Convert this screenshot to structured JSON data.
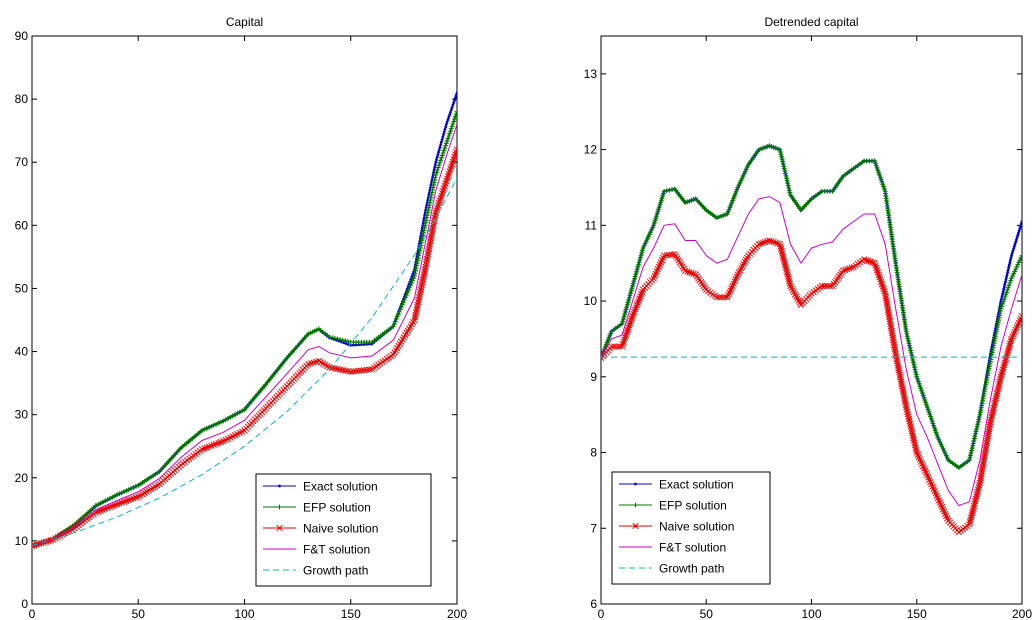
{
  "chart_data": [
    {
      "type": "line",
      "title": "Capital",
      "xlabel": "",
      "ylabel": "",
      "xlim": [
        0,
        200
      ],
      "ylim": [
        0,
        90
      ],
      "xticks": [
        0,
        50,
        100,
        150,
        200
      ],
      "yticks": [
        0,
        10,
        20,
        30,
        40,
        50,
        60,
        70,
        80,
        90
      ],
      "grid": false,
      "legend_position": "bottom-right",
      "series": [
        {
          "name": "Exact solution",
          "color": "#0000cc",
          "marker": "dot",
          "x": [
            0,
            10,
            20,
            30,
            40,
            50,
            60,
            70,
            80,
            90,
            100,
            110,
            120,
            130,
            135,
            140,
            150,
            160,
            170,
            180,
            185,
            190,
            195,
            200
          ],
          "y": [
            9.3,
            10.3,
            12.5,
            15.5,
            17.3,
            18.8,
            21.0,
            24.7,
            27.5,
            29.0,
            30.8,
            34.8,
            39.0,
            42.8,
            43.5,
            42.2,
            41.0,
            41.2,
            44.0,
            53.0,
            62.0,
            70.0,
            76.0,
            81.0
          ]
        },
        {
          "name": "EFP solution",
          "color": "#007700",
          "marker": "plus",
          "x": [
            0,
            10,
            20,
            30,
            40,
            50,
            60,
            70,
            80,
            90,
            100,
            110,
            120,
            130,
            135,
            140,
            150,
            160,
            170,
            180,
            185,
            190,
            195,
            200
          ],
          "y": [
            9.2,
            10.3,
            12.6,
            15.6,
            17.3,
            18.8,
            21.0,
            24.7,
            27.5,
            29.0,
            30.8,
            34.8,
            39.0,
            42.8,
            43.6,
            42.3,
            41.5,
            41.5,
            44.0,
            52.0,
            60.0,
            68.0,
            73.0,
            78.0
          ]
        },
        {
          "name": "Naive solution",
          "color": "#ee0000",
          "marker": "x",
          "x": [
            0,
            10,
            20,
            30,
            40,
            50,
            60,
            70,
            80,
            90,
            100,
            110,
            120,
            130,
            135,
            140,
            150,
            160,
            170,
            180,
            185,
            190,
            195,
            200
          ],
          "y": [
            9.2,
            10.2,
            12.0,
            14.5,
            15.8,
            17.0,
            19.0,
            22.0,
            24.5,
            25.8,
            27.5,
            31.0,
            34.5,
            38.0,
            38.5,
            37.5,
            36.8,
            37.2,
            39.5,
            45.0,
            53.0,
            62.0,
            67.0,
            72.0
          ]
        },
        {
          "name": "F&T solution",
          "color": "#cc00cc",
          "marker": "none",
          "x": [
            0,
            10,
            20,
            30,
            40,
            50,
            60,
            70,
            80,
            90,
            100,
            110,
            120,
            130,
            135,
            140,
            150,
            160,
            170,
            180,
            185,
            190,
            195,
            200
          ],
          "y": [
            9.2,
            10.2,
            12.2,
            14.9,
            16.4,
            17.8,
            19.9,
            23.2,
            25.9,
            27.2,
            29.1,
            32.8,
            36.5,
            40.3,
            40.8,
            39.8,
            39.0,
            39.3,
            41.8,
            48.5,
            57.0,
            65.5,
            71.0,
            76.0
          ]
        },
        {
          "name": "Growth path",
          "color": "#00bbbb",
          "marker": "none",
          "dashed": true,
          "x": [
            0,
            20,
            40,
            60,
            80,
            100,
            120,
            140,
            160,
            180,
            190,
            200
          ],
          "y": [
            9.26,
            11.29,
            13.8,
            16.8,
            20.5,
            25.0,
            30.5,
            37.2,
            45.4,
            55.3,
            61.1,
            67.5
          ]
        }
      ]
    },
    {
      "type": "line",
      "title": "Detrended capital",
      "xlabel": "",
      "ylabel": "",
      "xlim": [
        0,
        200
      ],
      "ylim": [
        6,
        13.5
      ],
      "xticks": [
        0,
        50,
        100,
        150,
        200
      ],
      "yticks": [
        6,
        7,
        8,
        9,
        10,
        11,
        12,
        13
      ],
      "grid": false,
      "legend_position": "bottom-left",
      "series": [
        {
          "name": "Exact solution",
          "color": "#0000cc",
          "marker": "dot",
          "x": [
            0,
            5,
            10,
            15,
            20,
            25,
            30,
            35,
            40,
            45,
            50,
            55,
            60,
            65,
            70,
            75,
            80,
            85,
            90,
            95,
            100,
            105,
            110,
            115,
            120,
            125,
            130,
            135,
            140,
            145,
            150,
            155,
            160,
            165,
            170,
            175,
            180,
            185,
            190,
            195,
            200
          ],
          "y": [
            9.25,
            9.6,
            9.7,
            10.2,
            10.7,
            11.0,
            11.45,
            11.48,
            11.3,
            11.35,
            11.2,
            11.1,
            11.15,
            11.5,
            11.8,
            12.0,
            12.05,
            12.0,
            11.4,
            11.2,
            11.35,
            11.45,
            11.45,
            11.65,
            11.75,
            11.85,
            11.85,
            11.45,
            10.5,
            9.6,
            9.0,
            8.6,
            8.2,
            7.9,
            7.8,
            7.9,
            8.5,
            9.3,
            10.0,
            10.6,
            11.05
          ]
        },
        {
          "name": "EFP solution",
          "color": "#007700",
          "marker": "plus",
          "x": [
            0,
            5,
            10,
            15,
            20,
            25,
            30,
            35,
            40,
            45,
            50,
            55,
            60,
            65,
            70,
            75,
            80,
            85,
            90,
            95,
            100,
            105,
            110,
            115,
            120,
            125,
            130,
            135,
            140,
            145,
            150,
            155,
            160,
            165,
            170,
            175,
            180,
            185,
            190,
            195,
            200
          ],
          "y": [
            9.25,
            9.6,
            9.7,
            10.2,
            10.7,
            11.0,
            11.45,
            11.48,
            11.3,
            11.35,
            11.2,
            11.1,
            11.15,
            11.5,
            11.8,
            12.0,
            12.05,
            12.0,
            11.4,
            11.2,
            11.35,
            11.45,
            11.45,
            11.65,
            11.75,
            11.85,
            11.85,
            11.45,
            10.5,
            9.6,
            9.0,
            8.6,
            8.2,
            7.9,
            7.8,
            7.9,
            8.5,
            9.2,
            9.9,
            10.3,
            10.6
          ]
        },
        {
          "name": "Naive solution",
          "color": "#ee0000",
          "marker": "x",
          "x": [
            0,
            5,
            10,
            15,
            20,
            25,
            30,
            35,
            40,
            45,
            50,
            55,
            60,
            65,
            70,
            75,
            80,
            85,
            90,
            95,
            100,
            105,
            110,
            115,
            120,
            125,
            130,
            135,
            140,
            145,
            150,
            155,
            160,
            165,
            170,
            175,
            180,
            185,
            190,
            195,
            200
          ],
          "y": [
            9.25,
            9.4,
            9.4,
            9.8,
            10.15,
            10.3,
            10.6,
            10.62,
            10.4,
            10.35,
            10.15,
            10.05,
            10.05,
            10.35,
            10.6,
            10.75,
            10.8,
            10.75,
            10.2,
            9.95,
            10.1,
            10.2,
            10.2,
            10.4,
            10.45,
            10.55,
            10.5,
            10.1,
            9.3,
            8.6,
            8.0,
            7.7,
            7.4,
            7.1,
            6.95,
            7.05,
            7.6,
            8.4,
            9.0,
            9.5,
            9.8
          ]
        },
        {
          "name": "F&T solution",
          "color": "#cc00cc",
          "marker": "none",
          "x": [
            0,
            5,
            10,
            15,
            20,
            25,
            30,
            35,
            40,
            45,
            50,
            55,
            60,
            65,
            70,
            75,
            80,
            85,
            90,
            95,
            100,
            105,
            110,
            115,
            120,
            125,
            130,
            135,
            140,
            145,
            150,
            155,
            160,
            165,
            170,
            175,
            180,
            185,
            190,
            195,
            200
          ],
          "y": [
            9.25,
            9.5,
            9.55,
            10.0,
            10.45,
            10.7,
            11.0,
            11.02,
            10.8,
            10.8,
            10.6,
            10.5,
            10.55,
            10.85,
            11.15,
            11.35,
            11.38,
            11.3,
            10.75,
            10.5,
            10.7,
            10.75,
            10.78,
            10.95,
            11.05,
            11.15,
            11.15,
            10.75,
            9.9,
            9.1,
            8.5,
            8.2,
            7.85,
            7.5,
            7.3,
            7.35,
            7.9,
            8.7,
            9.4,
            9.9,
            10.35
          ]
        },
        {
          "name": "Growth path",
          "color": "#00bbbb",
          "marker": "none",
          "dashed": true,
          "x": [
            0,
            200
          ],
          "y": [
            9.26,
            9.26
          ]
        }
      ]
    }
  ]
}
